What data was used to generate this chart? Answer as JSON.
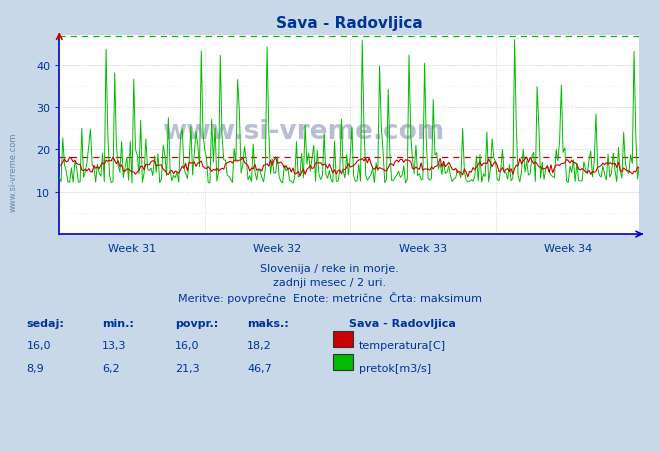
{
  "title": "Sava - Radovljica",
  "fig_bg_color": "#c8d8e8",
  "plot_bg_color": "#ffffff",
  "grid_major_color": "#cccccc",
  "grid_minor_color": "#e8e8e8",
  "temp_color": "#cc0000",
  "flow_color": "#00bb00",
  "max_dashed_flow_color": "#00bb00",
  "max_dashed_temp_color": "#cc0000",
  "axis_color": "#0000cc",
  "text_color": "#003399",
  "ylim_min": 0,
  "ylim_max": 47,
  "yticks": [
    10,
    20,
    30,
    40
  ],
  "week_labels": [
    "Week 31",
    "Week 32",
    "Week 33",
    "Week 34"
  ],
  "subtitle1": "Slovenija / reke in morje.",
  "subtitle2": "zadnji mesec / 2 uri.",
  "subtitle3": "Meritve: povprečne  Enote: metrične  Črta: maksimum",
  "legend_title": "Sava - Radovljica",
  "temp_stats": {
    "sedaj": "16,0",
    "min": "13,3",
    "povpr": "16,0",
    "maks": "18,2"
  },
  "flow_stats": {
    "sedaj": "8,9",
    "min": "6,2",
    "povpr": "21,3",
    "maks": "46,7"
  },
  "temp_max": 18.2,
  "flow_max": 46.7,
  "n_points": 336,
  "watermark": "www.si-vreme.com",
  "side_watermark": "www.si-vreme.com",
  "col_labels": [
    "sedaj:",
    "min.:",
    "povpr.:",
    "maks.:"
  ]
}
